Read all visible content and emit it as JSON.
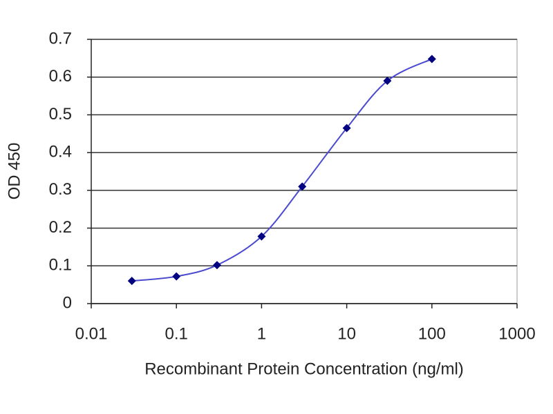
{
  "chart_data": {
    "type": "line",
    "xlabel": "Recombinant Protein Concentration (ng/ml)",
    "ylabel": "OD 450",
    "x": [
      0.03,
      0.1,
      0.3,
      1,
      3,
      10,
      30,
      100
    ],
    "series": [
      {
        "color": "#000080",
        "line_color": "#4a4ad0",
        "values": [
          0.06,
          0.072,
          0.102,
          0.178,
          0.31,
          0.465,
          0.59,
          0.648
        ]
      }
    ],
    "xlim": [
      0.01,
      1000
    ],
    "xticks": [
      0.01,
      0.1,
      1,
      10,
      100,
      1000
    ],
    "xscale": "log",
    "ylim": [
      0,
      0.7
    ],
    "yticks": [
      0,
      0.1,
      0.2,
      0.3,
      0.4,
      0.5,
      0.6,
      0.7
    ],
    "grid": true
  }
}
